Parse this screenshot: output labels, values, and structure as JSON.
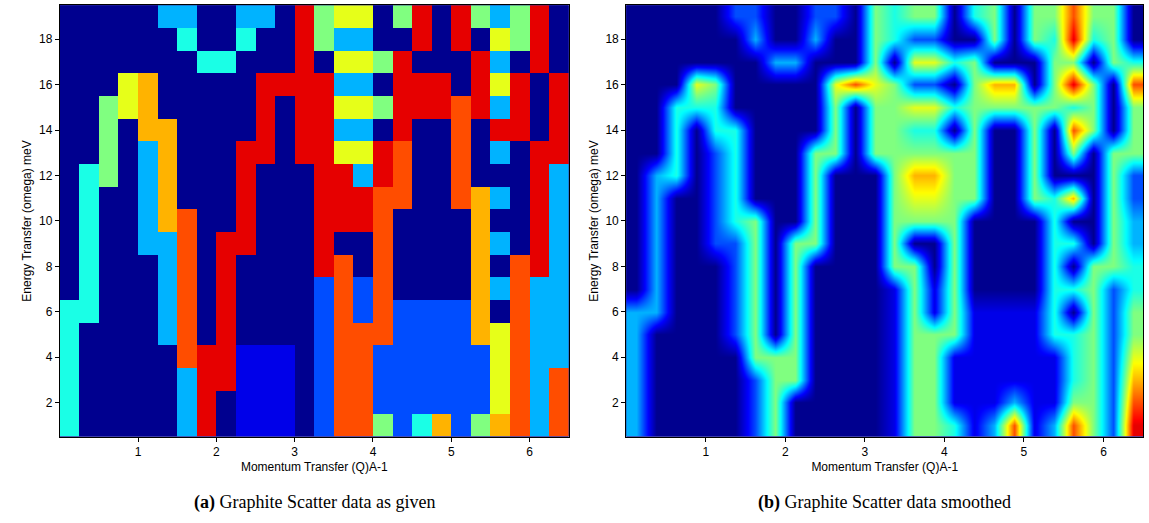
{
  "chart_data": [
    {
      "type": "heatmap",
      "caption_label": "(a)",
      "caption": "Graphite Scatter data as given",
      "x_label": "Momentum Transfer (Q)A-1",
      "y_label": "Energy Transfer (omega) meV",
      "grid": false,
      "xlim": [
        0,
        6.5
      ],
      "xticks": [
        1,
        2,
        3,
        4,
        5,
        6
      ],
      "ylim": [
        0.5,
        19.5
      ],
      "yticks": [
        2,
        4,
        6,
        8,
        10,
        12,
        14,
        16,
        18
      ],
      "zlim": [
        0,
        10
      ],
      "x": [
        0.125,
        0.375,
        0.625,
        0.875,
        1.125,
        1.375,
        1.625,
        1.875,
        2.125,
        2.375,
        2.625,
        2.875,
        3.125,
        3.375,
        3.625,
        3.875,
        4.125,
        4.375,
        4.625,
        4.875,
        5.125,
        5.375,
        5.625,
        5.875,
        6.125,
        6.375
      ],
      "y": [
        1,
        2,
        3,
        4,
        5,
        6,
        7,
        8,
        9,
        10,
        11,
        12,
        13,
        14,
        15,
        16,
        17,
        18,
        19
      ],
      "z": [
        [
          4,
          0,
          0,
          0,
          0,
          0,
          3,
          9,
          0,
          1,
          1,
          1,
          0,
          2,
          8,
          8,
          5,
          2,
          4,
          7,
          2,
          5,
          7,
          8,
          3,
          8
        ],
        [
          4,
          0,
          0,
          0,
          0,
          0,
          3,
          9,
          0,
          1,
          1,
          1,
          0,
          2,
          8,
          8,
          2,
          2,
          2,
          2,
          2,
          2,
          6,
          8,
          3,
          8
        ],
        [
          4,
          0,
          0,
          0,
          0,
          0,
          3,
          9,
          9,
          1,
          1,
          1,
          0,
          2,
          8,
          8,
          2,
          2,
          2,
          2,
          2,
          2,
          6,
          8,
          3,
          8
        ],
        [
          4,
          0,
          0,
          0,
          0,
          0,
          8,
          9,
          9,
          1,
          1,
          1,
          0,
          2,
          8,
          8,
          2,
          2,
          2,
          2,
          2,
          2,
          6,
          8,
          3,
          3
        ],
        [
          4,
          0,
          0,
          0,
          0,
          3,
          8,
          0,
          9,
          0,
          0,
          0,
          0,
          2,
          8,
          8,
          8,
          2,
          2,
          2,
          2,
          7,
          6,
          8,
          3,
          3
        ],
        [
          4,
          4,
          0,
          0,
          0,
          3,
          8,
          0,
          9,
          0,
          0,
          0,
          0,
          2,
          8,
          2,
          8,
          2,
          2,
          2,
          2,
          7,
          0,
          8,
          3,
          3
        ],
        [
          0,
          4,
          0,
          0,
          0,
          3,
          8,
          0,
          9,
          0,
          0,
          0,
          0,
          2,
          8,
          2,
          8,
          0,
          0,
          0,
          0,
          7,
          3,
          8,
          3,
          3
        ],
        [
          0,
          4,
          0,
          0,
          0,
          3,
          8,
          0,
          9,
          0,
          0,
          0,
          0,
          9,
          8,
          0,
          8,
          0,
          0,
          0,
          0,
          7,
          0,
          8,
          9,
          3
        ],
        [
          0,
          4,
          0,
          0,
          3,
          3,
          8,
          0,
          9,
          9,
          0,
          0,
          0,
          9,
          0,
          0,
          8,
          0,
          0,
          0,
          0,
          7,
          3,
          0,
          9,
          3
        ],
        [
          0,
          4,
          0,
          0,
          3,
          7,
          8,
          0,
          0,
          9,
          0,
          0,
          0,
          9,
          9,
          9,
          8,
          0,
          0,
          0,
          0,
          7,
          0,
          0,
          9,
          3
        ],
        [
          0,
          4,
          0,
          0,
          3,
          7,
          0,
          0,
          0,
          9,
          0,
          0,
          0,
          9,
          9,
          9,
          8,
          8,
          0,
          0,
          8,
          7,
          3,
          0,
          9,
          3
        ],
        [
          0,
          4,
          5,
          0,
          3,
          7,
          0,
          0,
          0,
          9,
          0,
          0,
          0,
          9,
          9,
          3,
          9,
          8,
          0,
          0,
          8,
          0,
          0,
          0,
          9,
          3
        ],
        [
          0,
          0,
          5,
          0,
          3,
          7,
          0,
          0,
          0,
          9,
          9,
          0,
          9,
          9,
          6,
          6,
          9,
          8,
          0,
          0,
          8,
          0,
          3,
          0,
          9,
          9
        ],
        [
          0,
          0,
          5,
          0,
          7,
          7,
          0,
          0,
          0,
          0,
          9,
          0,
          9,
          9,
          3,
          3,
          0,
          9,
          0,
          0,
          8,
          0,
          9,
          9,
          0,
          9
        ],
        [
          0,
          0,
          5,
          6,
          7,
          0,
          0,
          0,
          0,
          0,
          9,
          0,
          9,
          9,
          6,
          6,
          5,
          9,
          9,
          9,
          8,
          9,
          3,
          9,
          0,
          9
        ],
        [
          0,
          0,
          0,
          6,
          7,
          0,
          0,
          0,
          0,
          0,
          9,
          9,
          9,
          9,
          3,
          3,
          0,
          9,
          9,
          9,
          0,
          9,
          6,
          9,
          0,
          9
        ],
        [
          0,
          0,
          0,
          0,
          0,
          0,
          0,
          4,
          4,
          0,
          0,
          0,
          9,
          0,
          6,
          6,
          5,
          9,
          0,
          0,
          0,
          9,
          3,
          0,
          9,
          0
        ],
        [
          0,
          0,
          0,
          0,
          0,
          0,
          4,
          0,
          0,
          4,
          0,
          0,
          9,
          5,
          3,
          3,
          0,
          0,
          9,
          0,
          9,
          0,
          6,
          5,
          9,
          0
        ],
        [
          0,
          0,
          0,
          0,
          0,
          3,
          3,
          0,
          0,
          3,
          3,
          0,
          9,
          5,
          6,
          6,
          0,
          5,
          9,
          0,
          9,
          5,
          3,
          5,
          9,
          0
        ]
      ]
    },
    {
      "type": "heatmap",
      "caption_label": "(b)",
      "caption": "Graphite Scatter data smoothed",
      "x_label": "Momentum Transfer (Q)A-1",
      "y_label": "Energy Transfer (omega) meV",
      "grid": false,
      "xlim": [
        0,
        6.5
      ],
      "xticks": [
        1,
        2,
        3,
        4,
        5,
        6
      ],
      "ylim": [
        0.5,
        19.5
      ],
      "yticks": [
        2,
        4,
        6,
        8,
        10,
        12,
        14,
        16,
        18
      ],
      "zlim": [
        0,
        10
      ],
      "x": [
        0.125,
        0.375,
        0.625,
        0.875,
        1.125,
        1.375,
        1.625,
        1.875,
        2.125,
        2.375,
        2.625,
        2.875,
        3.125,
        3.375,
        3.625,
        3.875,
        4.125,
        4.375,
        4.625,
        4.875,
        5.125,
        5.375,
        5.625,
        5.875,
        6.125,
        6.375
      ],
      "y": [
        1,
        2,
        3,
        4,
        5,
        6,
        7,
        8,
        9,
        10,
        11,
        12,
        13,
        14,
        15,
        16,
        17,
        18,
        19
      ],
      "z": [
        [
          3,
          0,
          0,
          0,
          0,
          0,
          2,
          5,
          0,
          0,
          0,
          0,
          0,
          1,
          5,
          5,
          4,
          1,
          3,
          8,
          1,
          3,
          8,
          5,
          2,
          9
        ],
        [
          3,
          0,
          0,
          0,
          0,
          0,
          2,
          5,
          0,
          0,
          0,
          0,
          0,
          1,
          5,
          5,
          1,
          1,
          1,
          3,
          1,
          1,
          5,
          5,
          2,
          8
        ],
        [
          3,
          0,
          0,
          0,
          0,
          0,
          2,
          5,
          5,
          0,
          0,
          0,
          0,
          1,
          5,
          5,
          1,
          1,
          1,
          1,
          1,
          1,
          4,
          5,
          2,
          7
        ],
        [
          3,
          0,
          0,
          0,
          0,
          0,
          5,
          5,
          5,
          0,
          0,
          0,
          0,
          1,
          5,
          5,
          1,
          1,
          1,
          1,
          1,
          1,
          4,
          5,
          2,
          6
        ],
        [
          3,
          0,
          0,
          0,
          0,
          2,
          5,
          0,
          5,
          0,
          0,
          0,
          0,
          1,
          5,
          5,
          5,
          1,
          1,
          1,
          1,
          4,
          4,
          5,
          2,
          5
        ],
        [
          3,
          3,
          0,
          0,
          0,
          2,
          5,
          0,
          5,
          0,
          0,
          0,
          0,
          1,
          5,
          1,
          5,
          1,
          1,
          1,
          1,
          4,
          0,
          5,
          2,
          5
        ],
        [
          0,
          3,
          0,
          0,
          0,
          2,
          5,
          0,
          5,
          0,
          0,
          0,
          0,
          1,
          5,
          1,
          5,
          0,
          0,
          0,
          0,
          4,
          4,
          5,
          2,
          4
        ],
        [
          0,
          3,
          0,
          0,
          0,
          2,
          5,
          0,
          5,
          0,
          0,
          0,
          0,
          5,
          5,
          0,
          5,
          0,
          0,
          0,
          0,
          4,
          0,
          5,
          5,
          4
        ],
        [
          0,
          3,
          0,
          0,
          2,
          2,
          5,
          0,
          5,
          5,
          0,
          0,
          0,
          5,
          0,
          0,
          5,
          0,
          0,
          0,
          0,
          4,
          4,
          0,
          5,
          3
        ],
        [
          0,
          3,
          0,
          0,
          2,
          4,
          5,
          0,
          0,
          5,
          0,
          0,
          0,
          5,
          5,
          5,
          5,
          0,
          0,
          0,
          0,
          4,
          0,
          0,
          5,
          3
        ],
        [
          0,
          3,
          0,
          0,
          2,
          4,
          0,
          0,
          0,
          5,
          0,
          0,
          0,
          5,
          6,
          6,
          5,
          5,
          0,
          0,
          5,
          4,
          7,
          0,
          5,
          2
        ],
        [
          0,
          3,
          4,
          0,
          2,
          4,
          0,
          0,
          0,
          5,
          0,
          0,
          0,
          5,
          7,
          7,
          5,
          5,
          0,
          0,
          5,
          0,
          0,
          0,
          5,
          2
        ],
        [
          0,
          0,
          4,
          0,
          2,
          4,
          0,
          0,
          0,
          5,
          5,
          0,
          5,
          5,
          5,
          5,
          5,
          5,
          0,
          0,
          5,
          0,
          5,
          0,
          5,
          5
        ],
        [
          0,
          0,
          4,
          0,
          4,
          4,
          0,
          0,
          0,
          0,
          5,
          0,
          5,
          5,
          4,
          4,
          0,
          5,
          0,
          0,
          5,
          0,
          8,
          5,
          0,
          5
        ],
        [
          0,
          0,
          4,
          4,
          4,
          0,
          0,
          0,
          0,
          0,
          5,
          0,
          5,
          5,
          6,
          6,
          4,
          5,
          5,
          5,
          5,
          5,
          4,
          5,
          0,
          5
        ],
        [
          0,
          0,
          0,
          6,
          5,
          0,
          0,
          0,
          0,
          0,
          6,
          8,
          6,
          5,
          2,
          2,
          0,
          5,
          7,
          7,
          0,
          5,
          9,
          5,
          0,
          8
        ],
        [
          0,
          0,
          0,
          0,
          0,
          0,
          0,
          3,
          3,
          0,
          0,
          0,
          5,
          0,
          6,
          6,
          4,
          5,
          0,
          0,
          0,
          5,
          5,
          0,
          5,
          4
        ],
        [
          0,
          0,
          0,
          0,
          0,
          0,
          3,
          0,
          0,
          3,
          0,
          0,
          5,
          4,
          2,
          2,
          0,
          0,
          5,
          0,
          5,
          4,
          9,
          4,
          5,
          0
        ],
        [
          0,
          0,
          0,
          0,
          0,
          2,
          2,
          0,
          0,
          2,
          2,
          0,
          5,
          4,
          5,
          5,
          0,
          4,
          5,
          0,
          5,
          5,
          8,
          5,
          5,
          0
        ]
      ]
    }
  ]
}
